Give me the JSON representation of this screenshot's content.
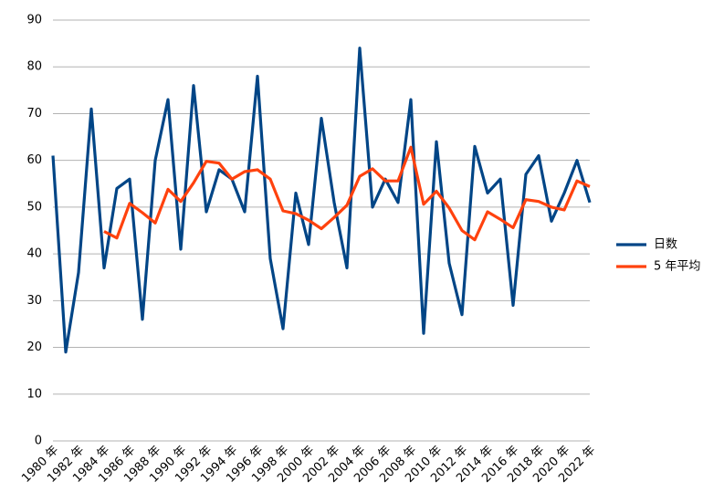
{
  "chart_data": {
    "type": "line",
    "categories": [
      "1980 年",
      null,
      "1982 年",
      null,
      "1984 年",
      null,
      "1986 年",
      null,
      "1988 年",
      null,
      "1990 年",
      null,
      "1992 年",
      null,
      "1994 年",
      null,
      "1996 年",
      null,
      "1998 年",
      null,
      "2000 年",
      null,
      "2002 年",
      null,
      "2004 年",
      null,
      "2006 年",
      null,
      "2008 年",
      null,
      "2010 年",
      null,
      "2012 年",
      null,
      "2014 年",
      null,
      "2016 年",
      null,
      "2018 年",
      null,
      "2020 年",
      null,
      "2022 年"
    ],
    "series": [
      {
        "name": "日数",
        "color": "#004586",
        "values": [
          61,
          19,
          36,
          71,
          37,
          54,
          56,
          26,
          60,
          73,
          41,
          76,
          49,
          58,
          56,
          49,
          78,
          39,
          24,
          53,
          42,
          69,
          51,
          37,
          84,
          50,
          56,
          51,
          73,
          23,
          64,
          38,
          27,
          63,
          53,
          56,
          29,
          57,
          61,
          47,
          53,
          60,
          51
        ]
      },
      {
        "name": "5 年平均",
        "color": "#ff420e",
        "values": [
          null,
          null,
          null,
          null,
          44.8,
          43.4,
          50.8,
          48.8,
          46.6,
          53.8,
          51.2,
          55.2,
          59.8,
          59.4,
          56,
          57.6,
          58,
          56,
          49.2,
          48.6,
          47.2,
          45.4,
          47.8,
          50.4,
          56.6,
          58.2,
          55.6,
          55.6,
          62.8,
          50.6,
          53.4,
          49.8,
          45,
          43,
          49,
          47.4,
          45.6,
          51.6,
          51.2,
          50,
          49.4,
          55.6,
          54.4
        ]
      }
    ],
    "ylim": [
      0,
      90
    ],
    "yticks": [
      0,
      10,
      20,
      30,
      40,
      50,
      60,
      70,
      80,
      90
    ],
    "grid": true,
    "legend": "right"
  }
}
